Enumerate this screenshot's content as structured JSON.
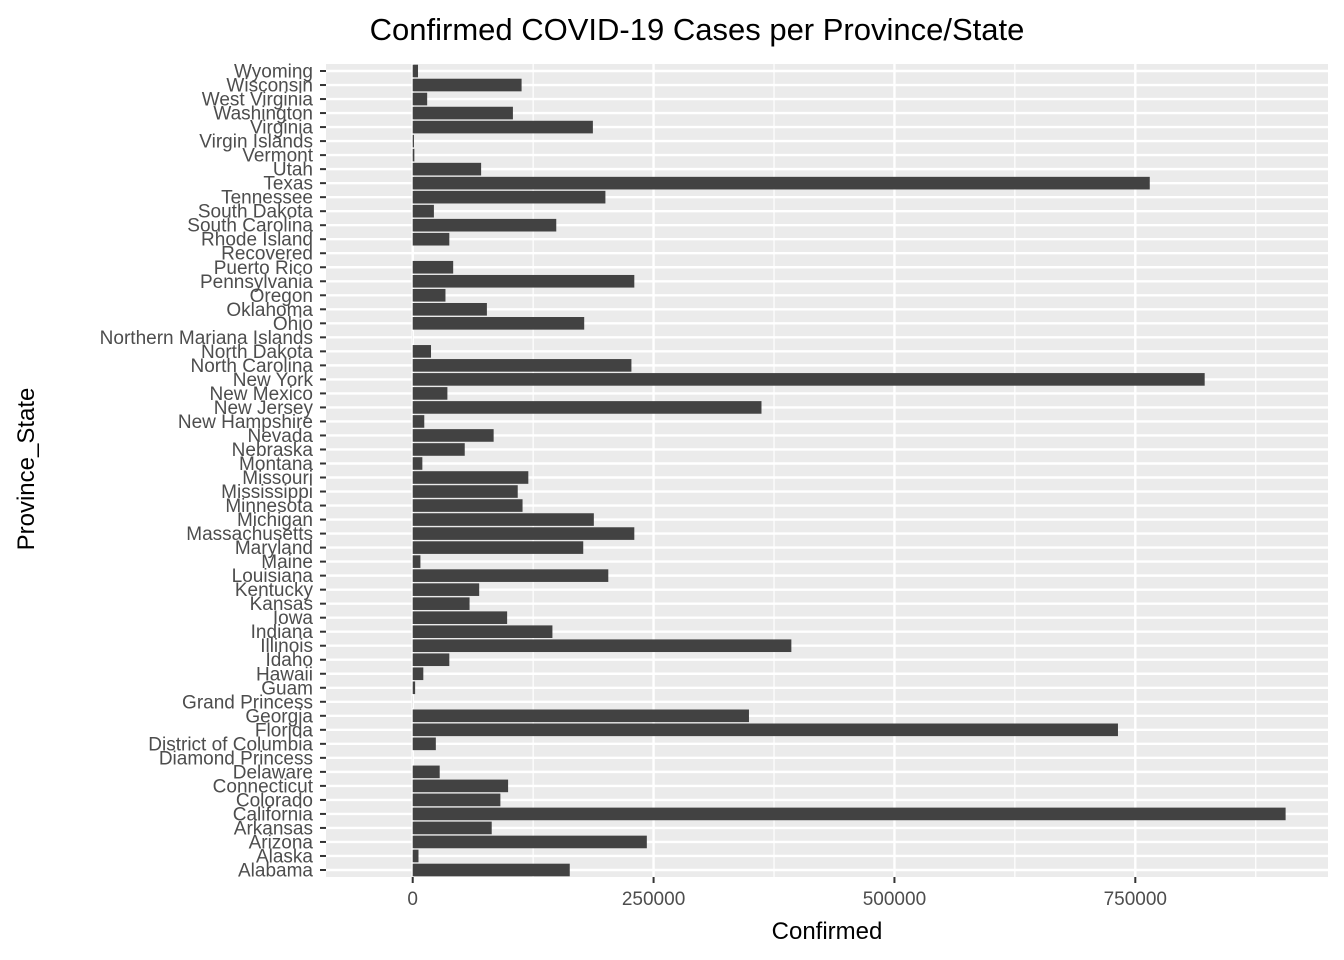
{
  "chart_data": {
    "type": "bar",
    "orientation": "horizontal",
    "title": "Confirmed COVID-19 Cases per Province/State",
    "xlabel": "Confirmed",
    "ylabel": "Province_State",
    "xlim": [
      -90000,
      950000
    ],
    "xticks": [
      0,
      250000,
      500000,
      750000
    ],
    "xtick_labels": [
      "0",
      "250000",
      "500000",
      "750000"
    ],
    "grid": true,
    "legend": "none",
    "bar_color": "#424242",
    "panel_color": "#ebebeb",
    "categories": [
      "Alabama",
      "Alaska",
      "Arizona",
      "Arkansas",
      "California",
      "Colorado",
      "Connecticut",
      "Delaware",
      "Diamond Princess",
      "District of Columbia",
      "Florida",
      "Georgia",
      "Grand Princess",
      "Guam",
      "Hawaii",
      "Idaho",
      "Illinois",
      "Indiana",
      "Iowa",
      "Kansas",
      "Kentucky",
      "Louisiana",
      "Maine",
      "Maryland",
      "Massachusetts",
      "Michigan",
      "Minnesota",
      "Mississippi",
      "Missouri",
      "Montana",
      "Nebraska",
      "Nevada",
      "New Hampshire",
      "New Jersey",
      "New Mexico",
      "New York",
      "North Carolina",
      "North Dakota",
      "Northern Mariana Islands",
      "Ohio",
      "Oklahoma",
      "Oregon",
      "Pennsylvania",
      "Puerto Rico",
      "Recovered",
      "Rhode Island",
      "South Carolina",
      "South Dakota",
      "Tennessee",
      "Texas",
      "Utah",
      "Vermont",
      "Virgin Islands",
      "Virginia",
      "Washington",
      "West Virginia",
      "Wisconsin",
      "Wyoming"
    ],
    "values": [
      163000,
      6000,
      243000,
      82000,
      906000,
      91000,
      99000,
      28000,
      49,
      24000,
      732000,
      349000,
      103,
      2500,
      11000,
      38000,
      393000,
      145000,
      98000,
      59000,
      69000,
      203000,
      8000,
      177000,
      230000,
      188000,
      114000,
      109000,
      120000,
      10000,
      54000,
      84000,
      12000,
      362000,
      36000,
      822000,
      227000,
      19000,
      70,
      178000,
      77000,
      34000,
      230000,
      42000,
      0,
      38000,
      149000,
      22000,
      200000,
      765000,
      71000,
      1700,
      1300,
      187000,
      104000,
      15000,
      113000,
      5500
    ]
  }
}
